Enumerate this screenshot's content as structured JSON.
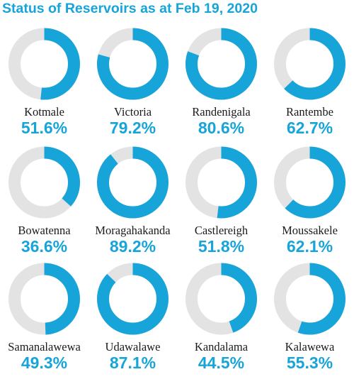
{
  "chart_data": {
    "type": "pie",
    "variant": "donut",
    "title": "Status of Reservoirs as at Feb 19, 2020",
    "colors": {
      "filled": "#17a4d9",
      "empty": "#e3e3e3",
      "title": "#17a4d9",
      "label": "#1a1a1a"
    },
    "reservoirs": [
      {
        "name": "Kotmale",
        "value": 51.6,
        "label": "51.6%"
      },
      {
        "name": "Victoria",
        "value": 79.2,
        "label": "79.2%"
      },
      {
        "name": "Randenigala",
        "value": 80.6,
        "label": "80.6%"
      },
      {
        "name": "Rantembe",
        "value": 62.7,
        "label": "62.7%"
      },
      {
        "name": "Bowatenna",
        "value": 36.6,
        "label": "36.6%"
      },
      {
        "name": "Moragahakanda",
        "value": 89.2,
        "label": "89.2%"
      },
      {
        "name": "Castlereigh",
        "value": 51.8,
        "label": "51.8%"
      },
      {
        "name": "Moussakele",
        "value": 62.1,
        "label": "62.1%"
      },
      {
        "name": "Samanalawewa",
        "value": 49.3,
        "label": "49.3%"
      },
      {
        "name": "Udawalawe",
        "value": 87.1,
        "label": "87.1%"
      },
      {
        "name": "Kandalama",
        "value": 44.5,
        "label": "44.5%"
      },
      {
        "name": "Kalawewa",
        "value": 55.3,
        "label": "55.3%"
      }
    ]
  }
}
